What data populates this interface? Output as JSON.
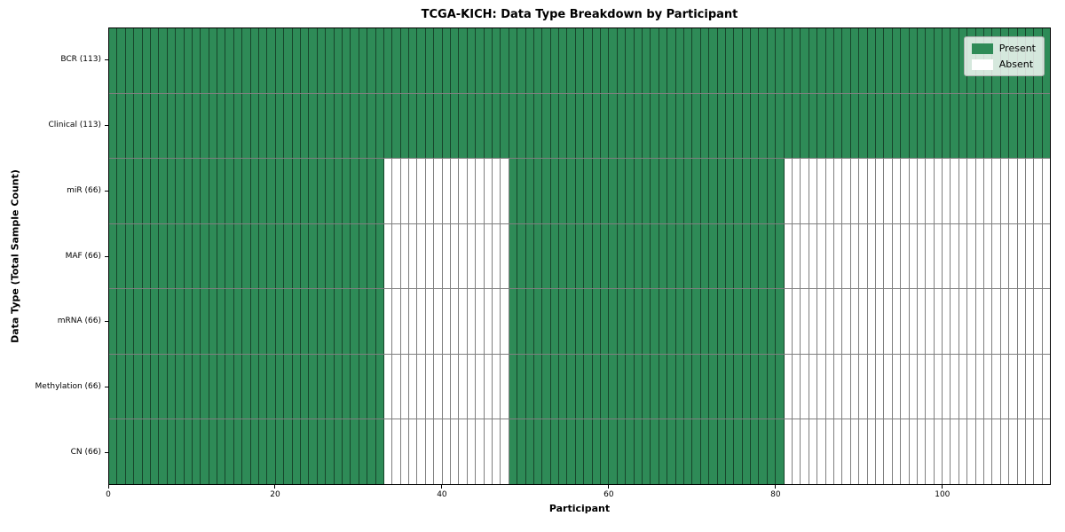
{
  "title": "TCGA-KICH: Data Type Breakdown by Participant",
  "chart_data": {
    "type": "heatmap",
    "title": "TCGA-KICH: Data Type Breakdown by Participant",
    "xlabel": "Participant",
    "ylabel": "Data Type (Total Sample Count)",
    "n_participants": 113,
    "x_axis": {
      "min": 0,
      "max": 113,
      "tick_values": [
        0,
        20,
        40,
        60,
        80,
        100
      ],
      "tick_labels": [
        "0",
        "20",
        "40",
        "60",
        "80",
        "100"
      ]
    },
    "rows": [
      {
        "data_type": "BCR",
        "label": "BCR (113)",
        "sample_count": 113,
        "present_segments": [
          [
            0,
            113
          ]
        ]
      },
      {
        "data_type": "Clinical",
        "label": "Clinical (113)",
        "sample_count": 113,
        "present_segments": [
          [
            0,
            113
          ]
        ]
      },
      {
        "data_type": "miR",
        "label": "miR (66)",
        "sample_count": 66,
        "present_segments": [
          [
            0,
            33
          ],
          [
            48,
            81
          ]
        ]
      },
      {
        "data_type": "MAF",
        "label": "MAF (66)",
        "sample_count": 66,
        "present_segments": [
          [
            0,
            33
          ],
          [
            48,
            81
          ]
        ]
      },
      {
        "data_type": "mRNA",
        "label": "mRNA (66)",
        "sample_count": 66,
        "present_segments": [
          [
            0,
            33
          ],
          [
            48,
            81
          ]
        ]
      },
      {
        "data_type": "Methylation",
        "label": "Methylation (66)",
        "sample_count": 66,
        "present_segments": [
          [
            0,
            33
          ],
          [
            48,
            81
          ]
        ]
      },
      {
        "data_type": "CN",
        "label": "CN (66)",
        "sample_count": 66,
        "present_segments": [
          [
            0,
            33
          ],
          [
            48,
            81
          ]
        ]
      }
    ],
    "legend": {
      "position": "upper right",
      "entries": [
        {
          "label": "Present",
          "color": "#2e8b57"
        },
        {
          "label": "Absent",
          "color": "#ffffff"
        }
      ]
    },
    "colors": {
      "present": "#2e8b57",
      "absent": "#ffffff",
      "cell_edge": "rgba(0,0,0,0.5)",
      "frame": "#000000"
    },
    "grid": false
  }
}
